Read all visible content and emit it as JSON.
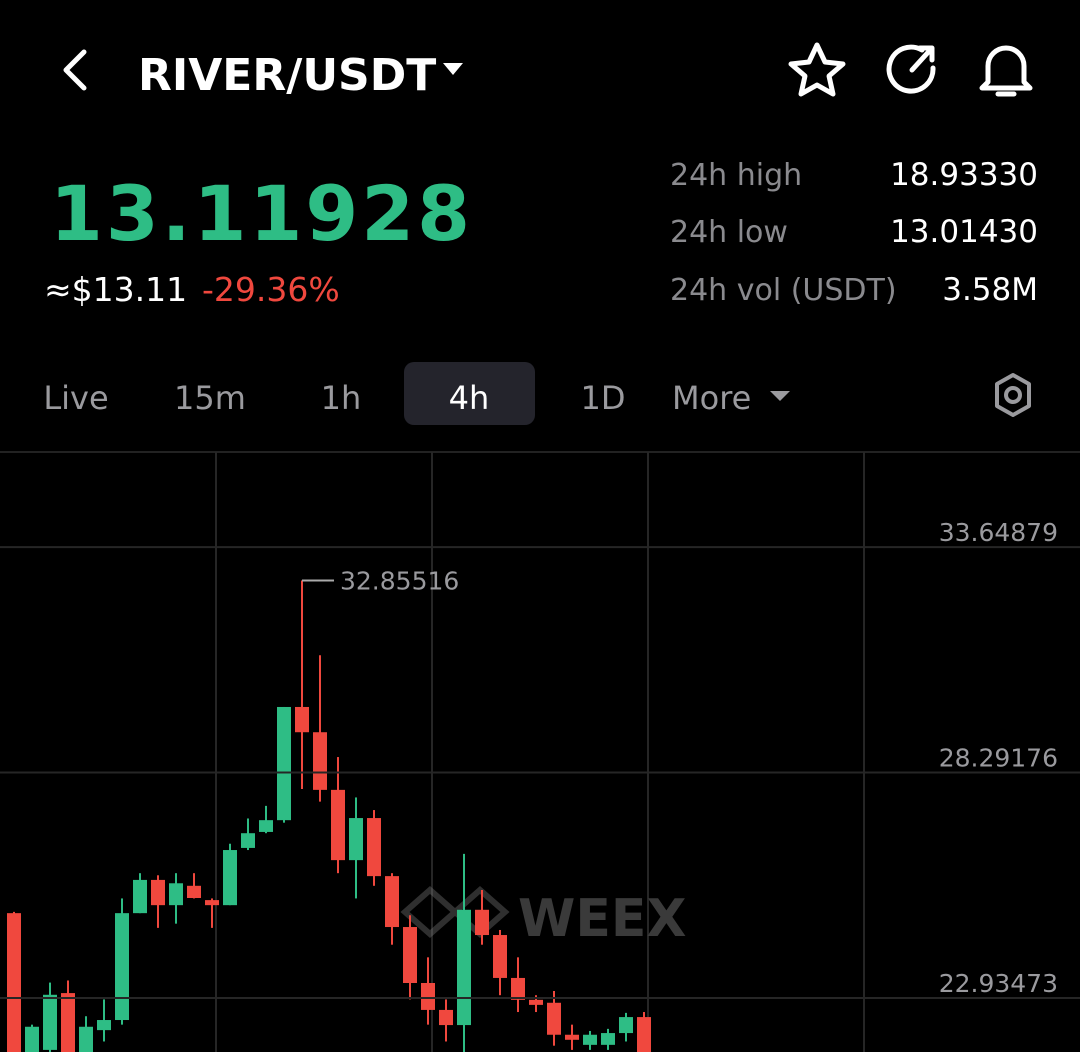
{
  "header": {
    "title": "RIVER/USDT"
  },
  "price": {
    "last": "13.11928",
    "usd": "≈$13.11",
    "change": "-29.36%"
  },
  "stats": [
    {
      "label": "24h high",
      "value": "18.93330"
    },
    {
      "label": "24h low",
      "value": "13.01430"
    },
    {
      "label": "24h vol (USDT)",
      "value": "3.58M"
    }
  ],
  "tabs": [
    "Live",
    "15m",
    "1h",
    "4h",
    "1D",
    "More"
  ],
  "chart_data": {
    "type": "candlestick",
    "watermark": "WEEX",
    "up_color": "#2ebd85",
    "down_color": "#f0483e",
    "ylim": [
      21.65,
      35.91
    ],
    "yticks": [
      22.93473,
      28.29176,
      33.64879
    ],
    "grid": true,
    "open": [
      24.95,
      21.5,
      21.7,
      23.05,
      21.5,
      22.17,
      22.41,
      24.95,
      25.74,
      25.14,
      25.6,
      25.26,
      25.14,
      26.5,
      26.88,
      27.16,
      29.85,
      29.25,
      27.88,
      26.21,
      27.21,
      25.83,
      24.62,
      23.29,
      22.65,
      22.29,
      25.03,
      24.43,
      23.41,
      22.89,
      22.82,
      22.06,
      21.82,
      21.82,
      22.1,
      22.48
    ],
    "high": [
      24.98,
      22.3,
      23.3,
      23.35,
      22.5,
      22.9,
      25.3,
      25.9,
      25.85,
      25.9,
      25.9,
      25.3,
      26.6,
      27.2,
      27.5,
      29.85,
      32.85516,
      31.08,
      28.66,
      27.7,
      27.4,
      25.9,
      24.9,
      23.9,
      22.9,
      26.36,
      25.5,
      24.55,
      23.9,
      23.0,
      23.1,
      22.3,
      22.15,
      22.2,
      22.58,
      22.6
    ],
    "low": [
      21.3,
      21.3,
      21.5,
      21.4,
      21.3,
      21.9,
      22.3,
      24.95,
      24.6,
      24.7,
      25.3,
      24.6,
      25.14,
      26.45,
      26.85,
      27.1,
      27.9,
      27.6,
      25.9,
      25.3,
      25.6,
      24.2,
      22.9,
      22.3,
      21.9,
      21.6,
      24.2,
      23.0,
      22.6,
      22.6,
      21.8,
      21.7,
      21.7,
      21.7,
      21.9,
      21.4
    ],
    "close": [
      21.4,
      22.25,
      23.01,
      21.6,
      22.25,
      22.41,
      24.95,
      25.74,
      25.14,
      25.66,
      25.31,
      25.14,
      26.45,
      26.85,
      27.16,
      29.85,
      29.25,
      27.88,
      26.21,
      27.21,
      25.83,
      24.62,
      23.29,
      22.65,
      22.29,
      25.03,
      24.43,
      23.41,
      22.89,
      22.77,
      22.06,
      21.94,
      22.06,
      22.1,
      22.48,
      21.6
    ]
  }
}
